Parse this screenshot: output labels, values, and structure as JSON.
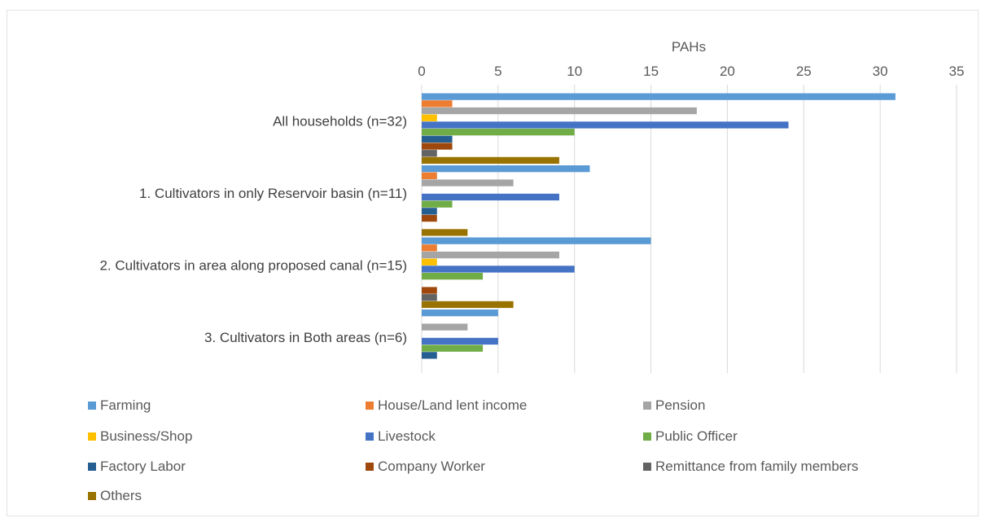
{
  "chart_data": {
    "type": "bar",
    "orientation": "horizontal",
    "title": "",
    "xlabel": "PAHs",
    "ylabel": "",
    "xlim": [
      0,
      35
    ],
    "xticks": [
      "0",
      "5",
      "10",
      "15",
      "20",
      "25",
      "30",
      "35"
    ],
    "grid": true,
    "legend_position": "bottom",
    "categories": [
      "All households (n=32)",
      "1. Cultivators in only Reservoir basin (n=11)",
      "2. Cultivators in area along proposed canal (n=15)",
      "3. Cultivators in Both areas (n=6)"
    ],
    "series": [
      {
        "name": "Farming",
        "color": "#5b9bd5",
        "values": [
          31,
          11,
          15,
          5
        ]
      },
      {
        "name": "House/Land lent income",
        "color": "#ed7d31",
        "values": [
          2,
          1,
          1,
          0
        ]
      },
      {
        "name": "Pension",
        "color": "#a5a5a5",
        "values": [
          18,
          6,
          9,
          3
        ]
      },
      {
        "name": "Business/Shop",
        "color": "#ffc000",
        "values": [
          1,
          0,
          1,
          0
        ]
      },
      {
        "name": "Livestock",
        "color": "#4472c4",
        "values": [
          24,
          9,
          10,
          5
        ]
      },
      {
        "name": "Public Officer",
        "color": "#70ad47",
        "values": [
          10,
          2,
          4,
          4
        ]
      },
      {
        "name": "Factory Labor",
        "color": "#255e91",
        "values": [
          2,
          1,
          0,
          1
        ]
      },
      {
        "name": "Company Worker",
        "color": "#9e480e",
        "values": [
          2,
          1,
          1,
          0
        ]
      },
      {
        "name": "Remittance from family members",
        "color": "#636363",
        "values": [
          1,
          0,
          1,
          0
        ]
      },
      {
        "name": "Others",
        "color": "#997300",
        "values": [
          9,
          3,
          6,
          0
        ]
      }
    ]
  }
}
